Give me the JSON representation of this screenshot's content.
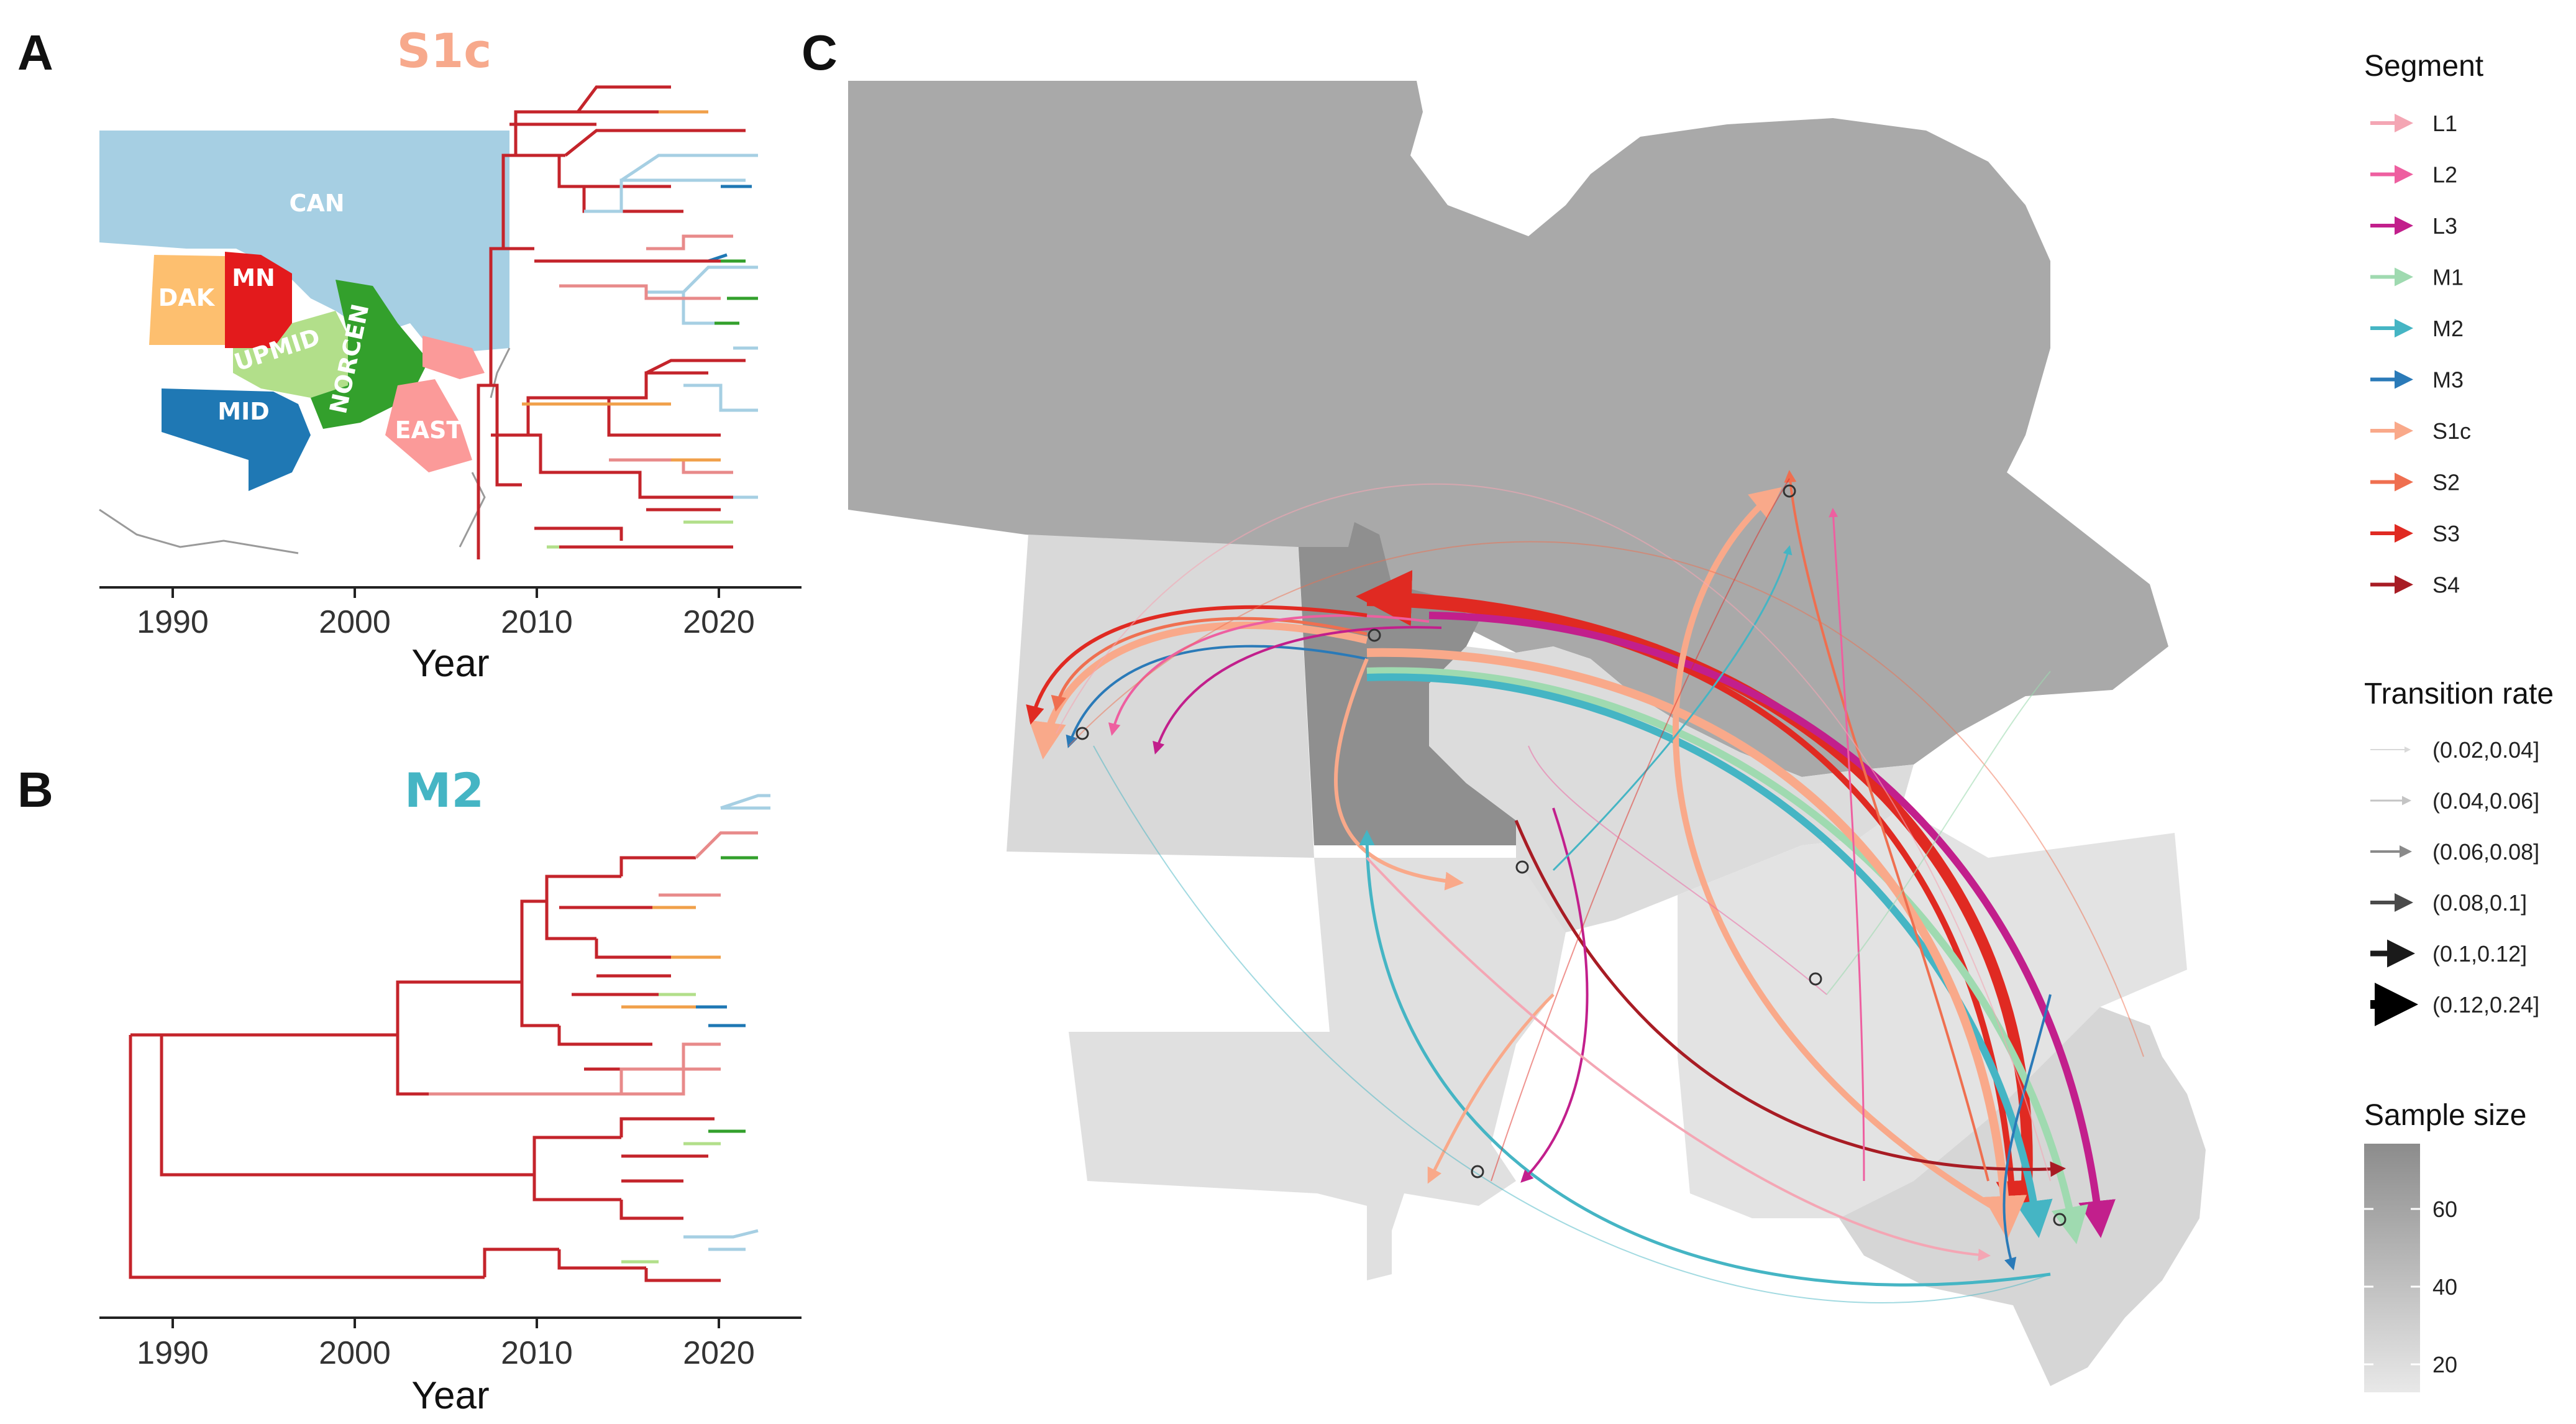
{
  "panels": {
    "a": {
      "letter": "A",
      "title": "S1c",
      "title_color": "#f7a98c"
    },
    "b": {
      "letter": "B",
      "title": "M2",
      "title_color": "#45b5c4"
    },
    "c": {
      "letter": "C"
    }
  },
  "axis": {
    "ticks": [
      "1990",
      "2000",
      "2010",
      "2020"
    ],
    "title": "Year"
  },
  "regions": [
    {
      "label": "CAN",
      "color": "#a6cfe3"
    },
    {
      "label": "MN",
      "color": "#e31a1c"
    },
    {
      "label": "DAK",
      "color": "#fdbf6f"
    },
    {
      "label": "UPMID",
      "color": "#b2df8a"
    },
    {
      "label": "NORCEN",
      "color": "#33a02c"
    },
    {
      "label": "MID",
      "color": "#1f78b4"
    },
    {
      "label": "EAST",
      "color": "#fb9a99"
    }
  ],
  "tree_colors": {
    "trunk": "#c4242b",
    "pink": "#e88a8a",
    "blue": "#a6cfe3",
    "orange": "#f0a04a",
    "green": "#33a02c",
    "lightgreen": "#b2df8a",
    "darkblue": "#1f78b4"
  },
  "legend": {
    "segment_title": "Segment",
    "segments": [
      {
        "label": "L1",
        "color": "#f4a6b4"
      },
      {
        "label": "L2",
        "color": "#ee5fa0"
      },
      {
        "label": "L3",
        "color": "#c21f8c"
      },
      {
        "label": "M1",
        "color": "#9fdab0"
      },
      {
        "label": "M2",
        "color": "#45b5c4"
      },
      {
        "label": "M3",
        "color": "#2a7ab8"
      },
      {
        "label": "S1c",
        "color": "#f9a98a"
      },
      {
        "label": "S2",
        "color": "#ef6f50"
      },
      {
        "label": "S3",
        "color": "#e02a22"
      },
      {
        "label": "S4",
        "color": "#a81c24"
      }
    ],
    "rate_title": "Transition rate",
    "rates": [
      {
        "label": "(0.02,0.04]",
        "gray": "#d9d9d9"
      },
      {
        "label": "(0.04,0.06]",
        "gray": "#c4c4c4"
      },
      {
        "label": "(0.06,0.08]",
        "gray": "#8a8a8a"
      },
      {
        "label": "(0.08,0.1]",
        "gray": "#4a4a4a"
      },
      {
        "label": "(0.1,0.12]",
        "gray": "#1a1a1a"
      },
      {
        "label": "(0.12,0.24]",
        "gray": "#000000"
      }
    ],
    "sample_title": "Sample size",
    "sample_ticks": [
      "60",
      "40",
      "20"
    ],
    "sample_colors": {
      "high": "#8c8c8c",
      "low": "#e8e8e8"
    }
  }
}
